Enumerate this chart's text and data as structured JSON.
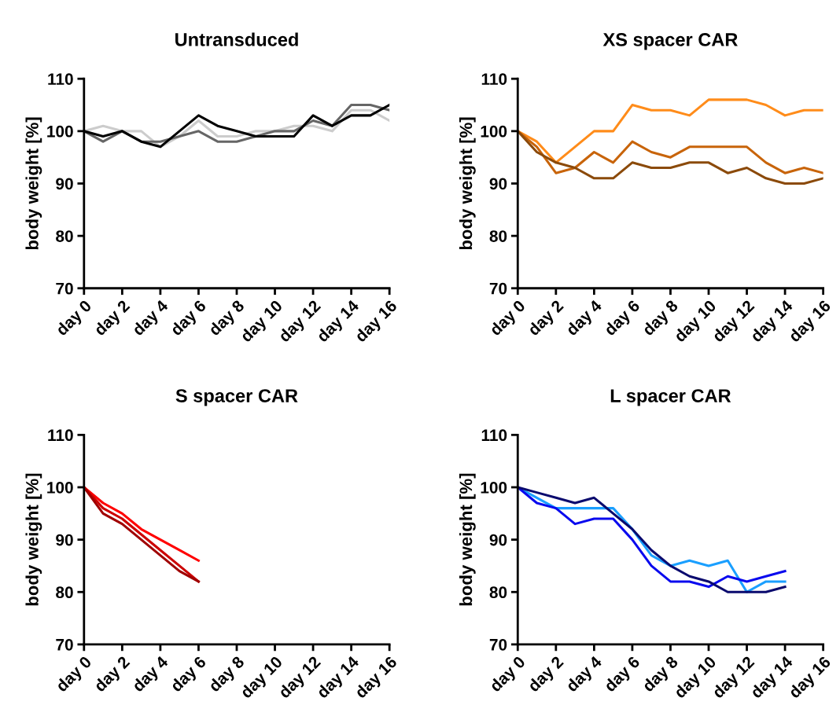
{
  "chart_data": [
    {
      "type": "line",
      "title": "Untransduced",
      "ylabel": "body weight [%]",
      "categories": [
        "day 0",
        null,
        "day 2",
        null,
        "day 4",
        null,
        "day 6",
        null,
        "day 8",
        null,
        "day 10",
        null,
        "day 12",
        null,
        "day 14",
        null,
        "day 16"
      ],
      "ylim": [
        70,
        110
      ],
      "yticks": [
        70,
        80,
        90,
        100,
        110
      ],
      "grid": false,
      "legend": false,
      "series": [
        {
          "color": "#cccccc",
          "values": [
            100,
            101,
            100,
            100,
            97,
            99,
            102,
            99,
            99,
            100,
            100,
            101,
            101,
            100,
            104,
            104,
            102
          ]
        },
        {
          "color": "#666666",
          "values": [
            100,
            98,
            100,
            98,
            98,
            99,
            100,
            98,
            98,
            99,
            100,
            100,
            102,
            101,
            105,
            105,
            104
          ]
        },
        {
          "color": "#000000",
          "values": [
            100,
            99,
            100,
            98,
            97,
            100,
            103,
            101,
            100,
            99,
            99,
            99,
            103,
            101,
            103,
            103,
            105
          ]
        }
      ]
    },
    {
      "type": "line",
      "title": "XS spacer CAR",
      "ylabel": "body weight [%]",
      "categories": [
        "day 0",
        null,
        "day 2",
        null,
        "day 4",
        null,
        "day 6",
        null,
        "day 8",
        null,
        "day 10",
        null,
        "day 12",
        null,
        "day 14",
        null,
        "day 16"
      ],
      "ylim": [
        70,
        110
      ],
      "yticks": [
        70,
        80,
        90,
        100,
        110
      ],
      "grid": false,
      "legend": false,
      "series": [
        {
          "color": "#ff8c1a",
          "values": [
            100,
            98,
            94,
            97,
            100,
            100,
            105,
            104,
            104,
            103,
            106,
            106,
            106,
            105,
            103,
            104,
            104
          ]
        },
        {
          "color": "#c8640a",
          "values": [
            100,
            97,
            92,
            93,
            96,
            94,
            98,
            96,
            95,
            97,
            97,
            97,
            97,
            94,
            92,
            93,
            92
          ]
        },
        {
          "color": "#8b4a0a",
          "values": [
            100,
            96,
            94,
            93,
            91,
            91,
            94,
            93,
            93,
            94,
            94,
            92,
            93,
            91,
            90,
            90,
            91
          ]
        }
      ]
    },
    {
      "type": "line",
      "title": "S spacer CAR",
      "ylabel": "body weight [%]",
      "categories": [
        "day 0",
        null,
        "day 2",
        null,
        "day 4",
        null,
        "day 6",
        null,
        "day 8",
        null,
        "day 10",
        null,
        "day 12",
        null,
        "day 14",
        null,
        "day 16"
      ],
      "ylim": [
        70,
        110
      ],
      "yticks": [
        70,
        80,
        90,
        100,
        110
      ],
      "grid": false,
      "legend": false,
      "series": [
        {
          "color": "#ff0000",
          "values": [
            100,
            97,
            95,
            92,
            90,
            88,
            86,
            null,
            null,
            null,
            null,
            null,
            null,
            null,
            null,
            null,
            null
          ]
        },
        {
          "color": "#cc0000",
          "values": [
            100,
            96,
            94,
            91,
            88,
            85,
            82,
            null,
            null,
            null,
            null,
            null,
            null,
            null,
            null,
            null,
            null
          ]
        },
        {
          "color": "#a00000",
          "values": [
            100,
            95,
            93,
            90,
            87,
            84,
            82,
            null,
            null,
            null,
            null,
            null,
            null,
            null,
            null,
            null,
            null
          ]
        }
      ]
    },
    {
      "type": "line",
      "title": "L spacer CAR",
      "ylabel": "body weight [%]",
      "categories": [
        "day 0",
        null,
        "day 2",
        null,
        "day 4",
        null,
        "day 6",
        null,
        "day 8",
        null,
        "day 10",
        null,
        "day 12",
        null,
        "day 14",
        null,
        "day 16"
      ],
      "ylim": [
        70,
        110
      ],
      "yticks": [
        70,
        80,
        90,
        100,
        110
      ],
      "grid": false,
      "legend": false,
      "series": [
        {
          "color": "#1a9fff",
          "values": [
            100,
            98,
            96,
            96,
            96,
            96,
            92,
            87,
            85,
            86,
            85,
            86,
            80,
            82,
            82,
            null,
            null
          ]
        },
        {
          "color": "#0a0aee",
          "values": [
            100,
            97,
            96,
            93,
            94,
            94,
            90,
            85,
            82,
            82,
            81,
            83,
            82,
            83,
            84,
            null,
            null
          ]
        },
        {
          "color": "#0a0a6e",
          "values": [
            100,
            99,
            98,
            97,
            98,
            95,
            92,
            88,
            85,
            83,
            82,
            80,
            80,
            80,
            81,
            null,
            null
          ]
        }
      ]
    }
  ]
}
